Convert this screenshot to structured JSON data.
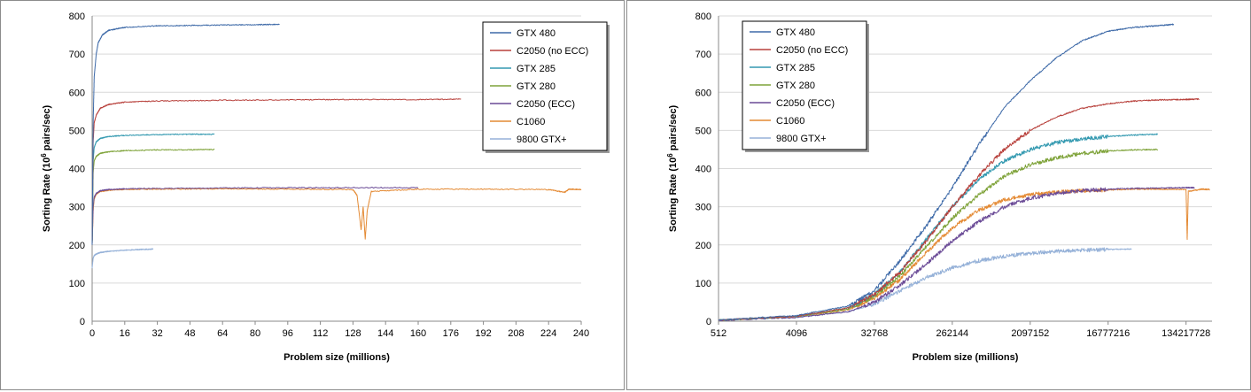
{
  "colors": {
    "GTX 480": "#3e6aa8",
    "C2050 (no ECC)": "#b8413c",
    "GTX 285": "#3399b0",
    "GTX 280": "#7fa33a",
    "C2050 (ECC)": "#6a4a96",
    "C1060": "#e48a34",
    "9800 GTX+": "#95b1d8"
  },
  "chart_data": [
    {
      "type": "line",
      "xlabel": "Problem size (millions)",
      "ylabel_parts": [
        "Sorting Rate (10",
        "6",
        " pairs/sec)"
      ],
      "xlim": [
        0,
        240
      ],
      "ylim": [
        0,
        800
      ],
      "x_ticks": [
        "0",
        "16",
        "32",
        "48",
        "64",
        "80",
        "96",
        "112",
        "128",
        "144",
        "160",
        "176",
        "192",
        "208",
        "224",
        "240"
      ],
      "y_ticks": [
        "0",
        "100",
        "200",
        "300",
        "400",
        "500",
        "600",
        "700",
        "800"
      ],
      "grid": true,
      "legend_position": "top-right",
      "series": [
        {
          "name": "GTX 480",
          "points": [
            [
              0,
              200
            ],
            [
              0.5,
              520
            ],
            [
              1,
              640
            ],
            [
              2,
              700
            ],
            [
              3,
              730
            ],
            [
              5,
              750
            ],
            [
              8,
              762
            ],
            [
              16,
              770
            ],
            [
              32,
              774
            ],
            [
              48,
              775
            ],
            [
              64,
              776
            ],
            [
              80,
              777
            ],
            [
              92,
              778
            ]
          ]
        },
        {
          "name": "C2050 (no ECC)",
          "points": [
            [
              0,
              200
            ],
            [
              0.5,
              470
            ],
            [
              1,
              520
            ],
            [
              2,
              540
            ],
            [
              4,
              558
            ],
            [
              8,
              568
            ],
            [
              16,
              574
            ],
            [
              32,
              577
            ],
            [
              64,
              579
            ],
            [
              96,
              580
            ],
            [
              128,
              581
            ],
            [
              160,
              581
            ],
            [
              181,
              582
            ]
          ]
        },
        {
          "name": "GTX 285",
          "points": [
            [
              0,
              200
            ],
            [
              0.5,
              420
            ],
            [
              1,
              455
            ],
            [
              2,
              470
            ],
            [
              4,
              479
            ],
            [
              8,
              484
            ],
            [
              16,
              487
            ],
            [
              32,
              489
            ],
            [
              48,
              490
            ],
            [
              60,
              490
            ]
          ]
        },
        {
          "name": "GTX 280",
          "points": [
            [
              0,
              200
            ],
            [
              0.5,
              390
            ],
            [
              1,
              420
            ],
            [
              2,
              432
            ],
            [
              4,
              440
            ],
            [
              8,
              444
            ],
            [
              16,
              447
            ],
            [
              32,
              449
            ],
            [
              48,
              449
            ],
            [
              60,
              450
            ]
          ]
        },
        {
          "name": "C2050 (ECC)",
          "points": [
            [
              0,
              200
            ],
            [
              0.5,
              300
            ],
            [
              1,
              325
            ],
            [
              2,
              335
            ],
            [
              4,
              342
            ],
            [
              8,
              345
            ],
            [
              16,
              347
            ],
            [
              32,
              348
            ],
            [
              64,
              349
            ],
            [
              96,
              350
            ],
            [
              128,
              350
            ],
            [
              160,
              350
            ]
          ]
        },
        {
          "name": "C1060",
          "points": [
            [
              0,
              200
            ],
            [
              0.5,
              290
            ],
            [
              1,
              320
            ],
            [
              2,
              333
            ],
            [
              4,
              340
            ],
            [
              8,
              343
            ],
            [
              16,
              345
            ],
            [
              32,
              346
            ],
            [
              64,
              347
            ],
            [
              96,
              346
            ],
            [
              128,
              345
            ],
            [
              130,
              330
            ],
            [
              132,
              240
            ],
            [
              133,
              300
            ],
            [
              134,
              215
            ],
            [
              135,
              290
            ],
            [
              137,
              340
            ],
            [
              160,
              346
            ],
            [
              192,
              346
            ],
            [
              224,
              345
            ],
            [
              232,
              338
            ],
            [
              234,
              346
            ],
            [
              240,
              345
            ]
          ]
        },
        {
          "name": "9800 GTX+",
          "points": [
            [
              0,
              140
            ],
            [
              0.5,
              165
            ],
            [
              1,
              172
            ],
            [
              2,
              176
            ],
            [
              4,
              180
            ],
            [
              8,
              183
            ],
            [
              16,
              186
            ],
            [
              24,
              188
            ],
            [
              30,
              189
            ]
          ]
        }
      ]
    },
    {
      "type": "line",
      "x_scale": "log2",
      "xlabel": "Problem size (millions)",
      "ylabel_parts": [
        "Sorting Rate (10",
        "6",
        " pairs/sec)"
      ],
      "xlim": [
        512,
        268435456
      ],
      "ylim": [
        0,
        800
      ],
      "x_ticks": [
        "512",
        "4096",
        "32768",
        "262144",
        "2097152",
        "16777216",
        "134217728"
      ],
      "y_ticks": [
        "0",
        "100",
        "200",
        "300",
        "400",
        "500",
        "600",
        "700",
        "800"
      ],
      "grid": true,
      "legend_position": "top-left",
      "series": [
        {
          "name": "GTX 480",
          "points": [
            [
              512,
              3
            ],
            [
              4096,
              15
            ],
            [
              16384,
              40
            ],
            [
              32768,
              80
            ],
            [
              65536,
              160
            ],
            [
              131072,
              250
            ],
            [
              262144,
              350
            ],
            [
              524288,
              460
            ],
            [
              1048576,
              560
            ],
            [
              2097152,
              630
            ],
            [
              4194304,
              690
            ],
            [
              8388608,
              735
            ],
            [
              16777216,
              760
            ],
            [
              33554432,
              770
            ],
            [
              67108864,
              775
            ],
            [
              96468992,
              778
            ]
          ]
        },
        {
          "name": "C2050 (no ECC)",
          "points": [
            [
              512,
              3
            ],
            [
              4096,
              13
            ],
            [
              16384,
              35
            ],
            [
              32768,
              70
            ],
            [
              65536,
              130
            ],
            [
              131072,
              210
            ],
            [
              262144,
              300
            ],
            [
              524288,
              380
            ],
            [
              1048576,
              450
            ],
            [
              2097152,
              500
            ],
            [
              4194304,
              535
            ],
            [
              8388608,
              558
            ],
            [
              16777216,
              570
            ],
            [
              33554432,
              577
            ],
            [
              67108864,
              580
            ],
            [
              134217728,
              581
            ],
            [
              189792256,
              582
            ]
          ]
        },
        {
          "name": "GTX 285",
          "points": [
            [
              512,
              3
            ],
            [
              4096,
              13
            ],
            [
              16384,
              35
            ],
            [
              32768,
              70
            ],
            [
              65536,
              130
            ],
            [
              131072,
              215
            ],
            [
              262144,
              300
            ],
            [
              524288,
              370
            ],
            [
              1048576,
              420
            ],
            [
              2097152,
              450
            ],
            [
              4194304,
              468
            ],
            [
              8388608,
              478
            ],
            [
              16777216,
              484
            ],
            [
              33554432,
              488
            ],
            [
              62914560,
              490
            ]
          ]
        },
        {
          "name": "GTX 280",
          "points": [
            [
              512,
              3
            ],
            [
              4096,
              12
            ],
            [
              16384,
              32
            ],
            [
              32768,
              65
            ],
            [
              65536,
              120
            ],
            [
              131072,
              195
            ],
            [
              262144,
              270
            ],
            [
              524288,
              330
            ],
            [
              1048576,
              380
            ],
            [
              2097152,
              410
            ],
            [
              4194304,
              428
            ],
            [
              8388608,
              440
            ],
            [
              16777216,
              446
            ],
            [
              33554432,
              449
            ],
            [
              62914560,
              450
            ]
          ]
        },
        {
          "name": "C2050 (ECC)",
          "points": [
            [
              512,
              2
            ],
            [
              4096,
              10
            ],
            [
              16384,
              25
            ],
            [
              32768,
              50
            ],
            [
              65536,
              95
            ],
            [
              131072,
              150
            ],
            [
              262144,
              210
            ],
            [
              524288,
              260
            ],
            [
              1048576,
              300
            ],
            [
              2097152,
              322
            ],
            [
              4194304,
              335
            ],
            [
              8388608,
              342
            ],
            [
              16777216,
              346
            ],
            [
              33554432,
              348
            ],
            [
              67108864,
              349
            ],
            [
              134217728,
              350
            ],
            [
              167772160,
              350
            ]
          ]
        },
        {
          "name": "C1060",
          "points": [
            [
              512,
              3
            ],
            [
              4096,
              12
            ],
            [
              16384,
              30
            ],
            [
              32768,
              60
            ],
            [
              65536,
              110
            ],
            [
              131072,
              180
            ],
            [
              262144,
              245
            ],
            [
              524288,
              290
            ],
            [
              1048576,
              318
            ],
            [
              2097152,
              332
            ],
            [
              4194304,
              338
            ],
            [
              8388608,
              342
            ],
            [
              16777216,
              344
            ],
            [
              33554432,
              346
            ],
            [
              67108864,
              346
            ],
            [
              134217728,
              345
            ],
            [
              138412032,
              215
            ],
            [
              142606336,
              340
            ],
            [
              201326592,
              346
            ],
            [
              251658240,
              345
            ]
          ]
        },
        {
          "name": "9800 GTX+",
          "points": [
            [
              512,
              3
            ],
            [
              4096,
              10
            ],
            [
              16384,
              25
            ],
            [
              32768,
              45
            ],
            [
              65536,
              80
            ],
            [
              131072,
              115
            ],
            [
              262144,
              140
            ],
            [
              524288,
              158
            ],
            [
              1048576,
              170
            ],
            [
              2097152,
              178
            ],
            [
              4194304,
              183
            ],
            [
              8388608,
              186
            ],
            [
              16777216,
              188
            ],
            [
              31457280,
              189
            ]
          ]
        }
      ]
    }
  ]
}
